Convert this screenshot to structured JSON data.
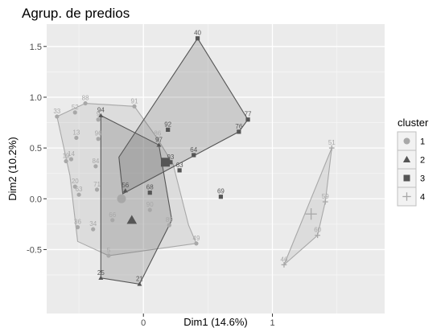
{
  "chart_data": {
    "type": "scatter",
    "title": "Agrup. de predios",
    "xlabel": "Dim1 (14.6%)",
    "ylabel": "Dim2 (10.2%)",
    "xlim": [
      -0.75,
      1.87
    ],
    "ylim": [
      -1.13,
      1.72
    ],
    "x_ticks": [
      0,
      1
    ],
    "y_ticks": [
      -0.5,
      0.0,
      0.5,
      1.0,
      1.5
    ],
    "y_tick_labels": [
      "-0.5",
      "0.0",
      "0.5",
      "1.0",
      "1.5"
    ],
    "grid": true,
    "legend": {
      "title": "cluster",
      "position": "right",
      "entries": [
        "1",
        "2",
        "3",
        "4"
      ]
    },
    "colors": {
      "c1": "#a8a8a8",
      "c2": "#555555",
      "c3": "#555555",
      "c4": "#a8a8a8",
      "panel": "#ebebeb",
      "grid_major": "#ffffff"
    },
    "clusters": [
      {
        "name": "1",
        "shape": "circle",
        "hull": [
          [
            -0.67,
            0.81
          ],
          [
            -0.45,
            0.94
          ],
          [
            -0.07,
            0.91
          ],
          [
            0.11,
            0.59
          ],
          [
            0.23,
            0.34
          ],
          [
            0.35,
            -0.26
          ],
          [
            0.41,
            -0.44
          ],
          [
            -0.27,
            -0.56
          ],
          [
            -0.51,
            -0.42
          ],
          [
            -0.57,
            0.23
          ]
        ],
        "centroid": [
          -0.17,
          0.0
        ],
        "points": [
          {
            "label": "33",
            "x": -0.67,
            "y": 0.81
          },
          {
            "label": "52",
            "x": -0.53,
            "y": 0.85
          },
          {
            "label": "88",
            "x": -0.45,
            "y": 0.94
          },
          {
            "label": "91",
            "x": -0.07,
            "y": 0.91
          },
          {
            "label": "13",
            "x": -0.52,
            "y": 0.6
          },
          {
            "label": "9",
            "x": -0.35,
            "y": 0.78
          },
          {
            "label": "96",
            "x": -0.35,
            "y": 0.59
          },
          {
            "label": "86",
            "x": 0.11,
            "y": 0.59
          },
          {
            "label": "19",
            "x": -0.6,
            "y": 0.37
          },
          {
            "label": "14",
            "x": -0.56,
            "y": 0.39
          },
          {
            "label": "84",
            "x": -0.37,
            "y": 0.32
          },
          {
            "label": "20",
            "x": -0.53,
            "y": 0.12
          },
          {
            "label": "71",
            "x": -0.36,
            "y": 0.09
          },
          {
            "label": "63",
            "x": -0.5,
            "y": 0.04
          },
          {
            "label": "66",
            "x": -0.24,
            "y": -0.21
          },
          {
            "label": "36",
            "x": -0.51,
            "y": -0.28
          },
          {
            "label": "34",
            "x": -0.39,
            "y": -0.3
          },
          {
            "label": "5",
            "x": -0.27,
            "y": -0.56
          },
          {
            "label": "90",
            "x": 0.05,
            "y": -0.11
          },
          {
            "label": "89",
            "x": 0.2,
            "y": -0.26
          },
          {
            "label": "49",
            "x": 0.41,
            "y": -0.44
          }
        ]
      },
      {
        "name": "2",
        "shape": "triangle",
        "hull": [
          [
            -0.33,
            0.82
          ],
          [
            0.12,
            0.53
          ],
          [
            0.22,
            -0.21
          ],
          [
            -0.03,
            -0.84
          ],
          [
            -0.33,
            -0.78
          ]
        ],
        "centroid": [
          -0.09,
          -0.21
        ],
        "points": [
          {
            "label": "94",
            "x": -0.33,
            "y": 0.82
          },
          {
            "label": "97",
            "x": 0.12,
            "y": 0.53
          },
          {
            "label": "25",
            "x": -0.33,
            "y": -0.78
          },
          {
            "label": "21",
            "x": -0.03,
            "y": -0.84
          },
          {
            "label": "56",
            "x": -0.14,
            "y": 0.08
          }
        ]
      },
      {
        "name": "3",
        "shape": "square",
        "hull": [
          [
            0.42,
            1.58
          ],
          [
            0.81,
            0.78
          ],
          [
            0.74,
            0.66
          ],
          [
            -0.16,
            0.05
          ],
          [
            -0.19,
            0.41
          ]
        ],
        "centroid": [
          0.17,
          0.36
        ],
        "points": [
          {
            "label": "40",
            "x": 0.42,
            "y": 1.58
          },
          {
            "label": "77",
            "x": 0.81,
            "y": 0.78
          },
          {
            "label": "76",
            "x": 0.74,
            "y": 0.66
          },
          {
            "label": "92",
            "x": 0.19,
            "y": 0.68
          },
          {
            "label": "93",
            "x": 0.21,
            "y": 0.36
          },
          {
            "label": "64",
            "x": 0.39,
            "y": 0.43
          },
          {
            "label": "63",
            "x": 0.28,
            "y": 0.28
          },
          {
            "label": "68",
            "x": 0.05,
            "y": 0.06
          },
          {
            "label": "69",
            "x": 0.6,
            "y": 0.02
          }
        ]
      },
      {
        "name": "4",
        "shape": "cross",
        "hull": [
          [
            1.46,
            0.5
          ],
          [
            1.41,
            -0.03
          ],
          [
            1.35,
            -0.36
          ],
          [
            1.09,
            -0.65
          ]
        ],
        "centroid": [
          1.3,
          -0.15
        ],
        "points": [
          {
            "label": "51",
            "x": 1.46,
            "y": 0.5
          },
          {
            "label": "59",
            "x": 1.41,
            "y": -0.03
          },
          {
            "label": "60",
            "x": 1.35,
            "y": -0.36
          },
          {
            "label": "46",
            "x": 1.09,
            "y": -0.65
          }
        ]
      }
    ]
  }
}
